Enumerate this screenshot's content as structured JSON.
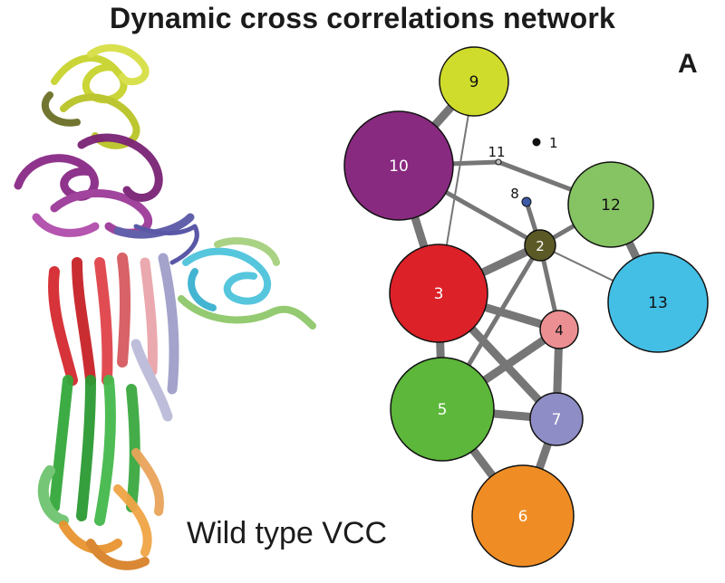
{
  "title": "Dynamic cross correlations network",
  "panel_label": "A",
  "caption": "Wild type VCC",
  "protein_colors": {
    "yellow": "#c8d32e",
    "purple": "#8a2a86",
    "red": "#d42a30",
    "green": "#33a83a",
    "orange": "#e8942f",
    "cyan": "#4ec3dc",
    "lightgreen": "#8fc86a",
    "slate": "#9a9ac6",
    "pink": "#e8a0a6",
    "olive": "#7a7a3a"
  },
  "network": {
    "nodes": [
      {
        "id": "1",
        "label": "1",
        "color": "#111111",
        "text_color": "#111111",
        "label_outside": true
      },
      {
        "id": "2",
        "label": "2",
        "color": "#5b5a26",
        "text_color": "#ffffff"
      },
      {
        "id": "3",
        "label": "3",
        "color": "#dc2128",
        "text_color": "#ffffff"
      },
      {
        "id": "4",
        "label": "4",
        "color": "#ec8f92",
        "text_color": "#111111"
      },
      {
        "id": "5",
        "label": "5",
        "color": "#5cb73a",
        "text_color": "#ffffff"
      },
      {
        "id": "6",
        "label": "6",
        "color": "#ef8d24",
        "text_color": "#ffffff"
      },
      {
        "id": "7",
        "label": "7",
        "color": "#8f8dc6",
        "text_color": "#ffffff"
      },
      {
        "id": "8",
        "label": "8",
        "color": "#3d5aa6",
        "text_color": "#111111",
        "label_outside": true
      },
      {
        "id": "9",
        "label": "9",
        "color": "#cfdc2c",
        "text_color": "#111111"
      },
      {
        "id": "10",
        "label": "10",
        "color": "#882a80",
        "text_color": "#ffffff"
      },
      {
        "id": "11",
        "label": "11",
        "color": "#bdbdbd",
        "text_color": "#111111",
        "label_outside": true
      },
      {
        "id": "12",
        "label": "12",
        "color": "#86c363",
        "text_color": "#111111"
      },
      {
        "id": "13",
        "label": "13",
        "color": "#43bfe6",
        "text_color": "#111111"
      }
    ],
    "edges": [
      {
        "source": "9",
        "target": "10",
        "strength": "strong"
      },
      {
        "source": "9",
        "target": "3",
        "strength": "weak"
      },
      {
        "source": "10",
        "target": "11",
        "strength": "medium"
      },
      {
        "source": "11",
        "target": "12",
        "strength": "medium"
      },
      {
        "source": "10",
        "target": "3",
        "strength": "strong"
      },
      {
        "source": "10",
        "target": "2",
        "strength": "medium"
      },
      {
        "source": "8",
        "target": "2",
        "strength": "medium"
      },
      {
        "source": "2",
        "target": "12",
        "strength": "medium"
      },
      {
        "source": "2",
        "target": "13",
        "strength": "weak"
      },
      {
        "source": "12",
        "target": "13",
        "strength": "strong"
      },
      {
        "source": "2",
        "target": "3",
        "strength": "strong"
      },
      {
        "source": "2",
        "target": "4",
        "strength": "medium"
      },
      {
        "source": "2",
        "target": "5",
        "strength": "medium"
      },
      {
        "source": "3",
        "target": "4",
        "strength": "strong"
      },
      {
        "source": "3",
        "target": "5",
        "strength": "strong"
      },
      {
        "source": "3",
        "target": "7",
        "strength": "strong"
      },
      {
        "source": "4",
        "target": "5",
        "strength": "strong"
      },
      {
        "source": "4",
        "target": "7",
        "strength": "strong"
      },
      {
        "source": "5",
        "target": "7",
        "strength": "strong"
      },
      {
        "source": "5",
        "target": "6",
        "strength": "strong"
      },
      {
        "source": "7",
        "target": "6",
        "strength": "strong"
      }
    ]
  }
}
